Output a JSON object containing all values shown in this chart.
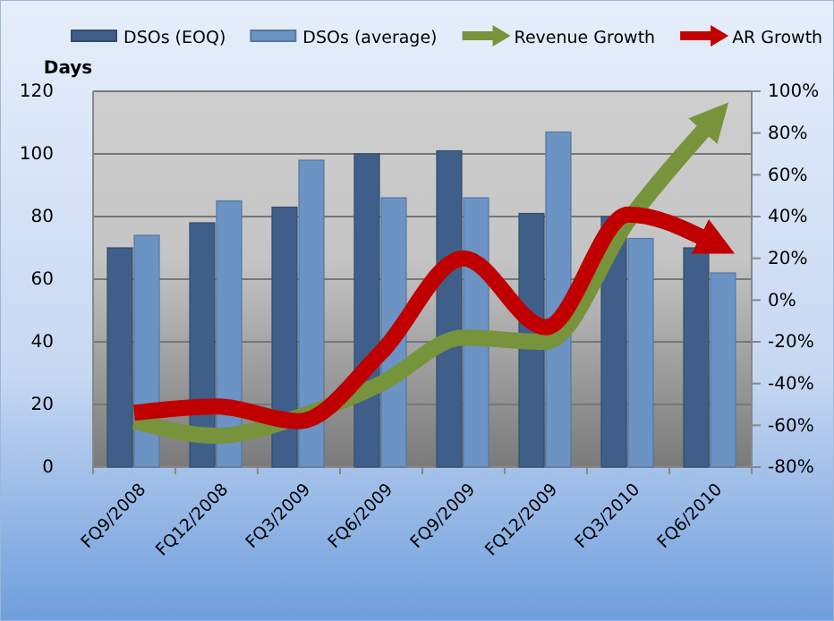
{
  "chart_data": {
    "type": "bar",
    "ylabel": "Days",
    "categories": [
      "FQ9/2008",
      "FQ12/2008",
      "FQ3/2009",
      "FQ6/2009",
      "FQ9/2009",
      "FQ12/2009",
      "FQ3/2010",
      "FQ6/2010"
    ],
    "series": [
      {
        "name": "DSOs (EOQ)",
        "color": "#3f5f8a",
        "values": [
          70,
          78,
          83,
          100,
          101,
          81,
          80,
          70
        ]
      },
      {
        "name": "DSOs (average)",
        "color": "#6b93c4",
        "values": [
          74,
          85,
          98,
          86,
          86,
          107,
          73,
          62
        ]
      },
      {
        "name": "Revenue Growth",
        "type": "line",
        "axis": "y2",
        "color": "#77933c",
        "values": [
          -58,
          -65,
          -56,
          -40,
          -18,
          -20,
          38,
          85
        ]
      },
      {
        "name": "AR Growth",
        "type": "line",
        "axis": "y2",
        "color": "#c00000",
        "values": [
          -54,
          -51,
          -58,
          -25,
          20,
          -13,
          41,
          28
        ]
      }
    ],
    "ylim": [
      0,
      120
    ],
    "yticks": [
      0,
      20,
      40,
      60,
      80,
      100,
      120
    ],
    "y2lim": [
      -80,
      100
    ],
    "y2ticks": [
      {
        "value": -80,
        "label": "-80%"
      },
      {
        "value": -60,
        "label": "-60%"
      },
      {
        "value": -40,
        "label": "-40%"
      },
      {
        "value": -20,
        "label": "-20%"
      },
      {
        "value": 0,
        "label": "0%"
      },
      {
        "value": 20,
        "label": "20%"
      },
      {
        "value": 40,
        "label": "40%"
      },
      {
        "value": 60,
        "label": "60%"
      },
      {
        "value": 80,
        "label": "80%"
      },
      {
        "value": 100,
        "label": "100%"
      }
    ],
    "grid": "y",
    "legend": "top",
    "marker": "none",
    "line_style": "solid"
  }
}
